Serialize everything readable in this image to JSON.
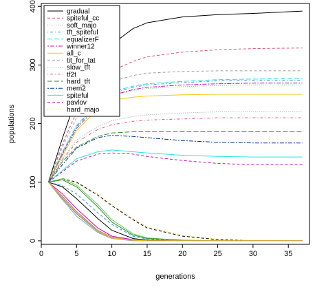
{
  "chart_data": {
    "type": "line",
    "title": "",
    "xlabel": "generations",
    "ylabel": "populations",
    "xlim": [
      0,
      38
    ],
    "ylim": [
      -6,
      405
    ],
    "xticks": [
      0,
      5,
      10,
      15,
      20,
      25,
      30,
      35
    ],
    "yticks": [
      0,
      100,
      200,
      300,
      400
    ],
    "legend_position": "top-left",
    "grid": false,
    "series": [
      {
        "name": "gradual",
        "color": "#000000",
        "dash": "solid",
        "x": [
          1,
          3,
          5,
          8,
          10,
          13,
          15,
          20,
          25,
          30,
          37
        ],
        "y": [
          100,
          175,
          245,
          305,
          335,
          362,
          372,
          382,
          386,
          388,
          392
        ]
      },
      {
        "name": "spiteful_cc",
        "color": "#df536b",
        "dash": "dashed",
        "x": [
          1,
          3,
          5,
          8,
          10,
          13,
          15,
          20,
          25,
          30,
          37
        ],
        "y": [
          100,
          165,
          220,
          270,
          290,
          306,
          314,
          322,
          326,
          328,
          329
        ]
      },
      {
        "name": "soft_majo",
        "color": "#61d04f",
        "dash": "dotted",
        "x": [
          1,
          3,
          5,
          8,
          10,
          13,
          15,
          20,
          25,
          30,
          37
        ],
        "y": [
          100,
          150,
          195,
          232,
          248,
          256,
          260,
          263,
          265,
          266,
          266
        ]
      },
      {
        "name": "tft_spiteful",
        "color": "#2297e6",
        "dash": "dotdash",
        "x": [
          1,
          3,
          5,
          8,
          10,
          13,
          15,
          20,
          25,
          30,
          37
        ],
        "y": [
          100,
          150,
          195,
          234,
          252,
          262,
          266,
          270,
          273,
          274,
          274
        ]
      },
      {
        "name": "equalizerF",
        "color": "#28e2e5",
        "dash": "longdash",
        "x": [
          1,
          3,
          5,
          8,
          10,
          13,
          15,
          20,
          25,
          30,
          37
        ],
        "y": [
          100,
          152,
          197,
          236,
          254,
          264,
          268,
          272,
          275,
          276,
          277
        ]
      },
      {
        "name": "winner12",
        "color": "#cd0bbc",
        "dash": "twodash",
        "x": [
          1,
          3,
          5,
          8,
          10,
          13,
          15,
          20,
          25,
          30,
          37
        ],
        "y": [
          100,
          148,
          192,
          230,
          248,
          258,
          262,
          266,
          268,
          269,
          269
        ]
      },
      {
        "name": "all_c",
        "color": "#f5c710",
        "dash": "solid",
        "x": [
          1,
          3,
          5,
          8,
          10,
          13,
          15,
          20,
          25,
          30,
          37
        ],
        "y": [
          100,
          145,
          188,
          225,
          240,
          245,
          247,
          249,
          250,
          250,
          250
        ]
      },
      {
        "name": "tit_for_tat",
        "color": "#9e9e9e",
        "dash": "dashed",
        "x": [
          1,
          3,
          5,
          8,
          10,
          13,
          15,
          20,
          25,
          30,
          37
        ],
        "y": [
          100,
          160,
          210,
          255,
          272,
          282,
          286,
          289,
          290,
          290,
          290
        ]
      },
      {
        "name": "slow_tft",
        "color": "#9e9e9e",
        "dash": "dotted",
        "x": [
          1,
          3,
          5,
          8,
          10,
          13,
          15,
          20,
          25,
          30,
          37
        ],
        "y": [
          100,
          140,
          172,
          195,
          205,
          212,
          215,
          218,
          220,
          220,
          220
        ]
      },
      {
        "name": "tf2t",
        "color": "#df536b",
        "dash": "dotdash",
        "x": [
          1,
          3,
          5,
          8,
          10,
          13,
          15,
          20,
          25,
          30,
          37
        ],
        "y": [
          100,
          138,
          168,
          190,
          198,
          204,
          206,
          208,
          210,
          210,
          210
        ]
      },
      {
        "name": "hard_tft",
        "color": "#2e8b2e",
        "dash": "longdash",
        "x": [
          1,
          3,
          5,
          8,
          10,
          13,
          15,
          20,
          25,
          30,
          37
        ],
        "y": [
          100,
          135,
          160,
          178,
          184,
          186,
          186,
          186,
          186,
          186,
          186
        ]
      },
      {
        "name": "mem2",
        "color": "#003399",
        "dash": "twodash",
        "x": [
          1,
          3,
          5,
          8,
          10,
          13,
          15,
          20,
          25,
          30,
          37
        ],
        "y": [
          100,
          130,
          158,
          176,
          180,
          178,
          176,
          171,
          168,
          167,
          167
        ]
      },
      {
        "name": "spiteful",
        "color": "#28e2e5",
        "dash": "solid",
        "x": [
          1,
          3,
          5,
          8,
          10,
          13,
          15,
          20,
          25,
          30,
          37
        ],
        "y": [
          100,
          120,
          140,
          152,
          155,
          152,
          150,
          146,
          144,
          143,
          143
        ]
      },
      {
        "name": "pavlov",
        "color": "#cd0bbc",
        "dash": "dashed",
        "x": [
          1,
          3,
          5,
          8,
          10,
          13,
          15,
          20,
          25,
          30,
          37
        ],
        "y": [
          100,
          118,
          136,
          148,
          150,
          148,
          144,
          137,
          132,
          130,
          130
        ]
      },
      {
        "name": "hard_majo",
        "color": "#f5c710",
        "dash": "dotted",
        "x": [
          1,
          3,
          5,
          8,
          10,
          13,
          15,
          20,
          25,
          30,
          37
        ],
        "y": [
          100,
          104,
          98,
          80,
          62,
          38,
          24,
          9,
          3,
          1,
          0
        ]
      },
      {
        "name": "",
        "color": "#000000",
        "dash": "dashed",
        "x": [
          1,
          3,
          5,
          8,
          10,
          13,
          15,
          20,
          25,
          30,
          37
        ],
        "y": [
          100,
          106,
          100,
          78,
          60,
          36,
          22,
          8,
          2,
          0,
          0
        ]
      },
      {
        "name": "",
        "color": "#61d04f",
        "dash": "solid",
        "x": [
          1,
          3,
          5,
          8,
          10,
          13,
          15,
          20,
          25,
          30,
          37
        ],
        "y": [
          100,
          106,
          95,
          62,
          36,
          12,
          5,
          1,
          0,
          0,
          0
        ]
      },
      {
        "name": "",
        "color": "#2e8b2e",
        "dash": "solid",
        "x": [
          1,
          3,
          5,
          8,
          10,
          13,
          15,
          20,
          25,
          30,
          37
        ],
        "y": [
          100,
          104,
          92,
          58,
          32,
          10,
          4,
          1,
          0,
          0,
          0
        ]
      },
      {
        "name": "",
        "color": "#000000",
        "dash": "solid",
        "x": [
          1,
          3,
          5,
          8,
          10,
          13,
          15,
          20,
          25,
          30,
          37
        ],
        "y": [
          100,
          92,
          72,
          38,
          18,
          4,
          1,
          0,
          0,
          0,
          0
        ]
      },
      {
        "name": "",
        "color": "#2297e6",
        "dash": "dashed",
        "x": [
          1,
          3,
          5,
          8,
          10,
          13,
          15,
          20,
          25,
          30,
          37
        ],
        "y": [
          100,
          94,
          80,
          48,
          28,
          8,
          3,
          0,
          0,
          0,
          0
        ]
      },
      {
        "name": "",
        "color": "#cd0bbc",
        "dash": "solid",
        "x": [
          1,
          3,
          5,
          8,
          10,
          13,
          15,
          20,
          25,
          30,
          37
        ],
        "y": [
          100,
          80,
          55,
          22,
          8,
          2,
          0,
          0,
          0,
          0,
          0
        ]
      },
      {
        "name": "",
        "color": "#df536b",
        "dash": "solid",
        "x": [
          1,
          3,
          5,
          8,
          10,
          13,
          15,
          20,
          25,
          30,
          37
        ],
        "y": [
          100,
          76,
          50,
          18,
          6,
          1,
          0,
          0,
          0,
          0,
          0
        ]
      },
      {
        "name": "",
        "color": "#2297e6",
        "dash": "solid",
        "x": [
          1,
          3,
          5,
          8,
          10,
          13,
          15,
          20,
          25,
          30,
          37
        ],
        "y": [
          100,
          72,
          46,
          16,
          5,
          1,
          0,
          0,
          0,
          0,
          0
        ]
      },
      {
        "name": "",
        "color": "#9e9e9e",
        "dash": "solid",
        "x": [
          1,
          3,
          5,
          8,
          10,
          13,
          15,
          20,
          25,
          30,
          37
        ],
        "y": [
          100,
          70,
          42,
          14,
          4,
          0,
          0,
          0,
          0,
          0,
          0
        ]
      },
      {
        "name": "",
        "color": "#f5c710",
        "dash": "solid",
        "x": [
          1,
          3,
          5,
          8,
          10,
          13,
          15,
          20,
          25,
          30,
          37
        ],
        "y": [
          100,
          74,
          48,
          17,
          5,
          1,
          0,
          0,
          0,
          0,
          0
        ]
      }
    ]
  }
}
